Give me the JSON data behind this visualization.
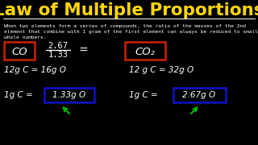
{
  "background_color": "#000000",
  "title": "Law of Multiple Proportions",
  "title_color": "#FFD700",
  "subtitle_line1": "When two elements form a series of compounds, the ratio of the masses of the 2nd",
  "subtitle_line2": "element that combine with 1 gram of the first element can always be reduced to small",
  "subtitle_line3": "whole numbers.",
  "subtitle_color": "#FFFFFF",
  "line_color": "#FFFFFF",
  "text_color": "#FFFFFF",
  "red_box_color": "#CC2200",
  "blue_box_color": "#1111CC",
  "left_formula": "CO",
  "right_formula": "CO₂",
  "fraction_num": "2.67",
  "fraction_den": "1.33",
  "equals": "=",
  "left_line1": "12g C = 16g O",
  "right_line1": "12 g C = 32g O",
  "left_line2_pre": "1g C =",
  "left_box_val": "1.33g O",
  "right_line2_pre": "1g C =",
  "right_box_val": "2.67g O",
  "arrow_color": "#00BB00"
}
